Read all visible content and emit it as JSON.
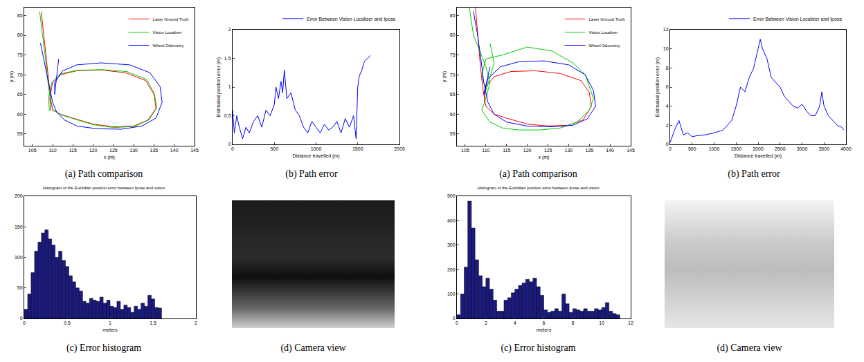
{
  "chart_data": [
    {
      "type": "line",
      "caption": "(a) Path comparison",
      "xlabel": "x (m)",
      "ylabel": "y (m)",
      "xlim": [
        103,
        145
      ],
      "xticks": [
        105,
        110,
        115,
        120,
        125,
        130,
        135,
        140,
        145
      ],
      "ylim": [
        52,
        87
      ],
      "yticks": [
        55,
        60,
        65,
        70,
        75,
        80,
        85
      ],
      "grid": false,
      "legend": "upper right",
      "series": [
        {
          "name": "Laser Ground Truth",
          "color": "#ff0000",
          "x": [
            107.2,
            107.8,
            108.4,
            109,
            109.5,
            110,
            112,
            115,
            120,
            125,
            130,
            133.5,
            135.5,
            135,
            133,
            128,
            122,
            116,
            112,
            110,
            109.3,
            109.5
          ],
          "values": [
            86,
            80,
            74,
            68,
            64,
            61,
            60,
            59,
            57.5,
            56.8,
            57,
            58.5,
            61.5,
            65,
            68.5,
            70.5,
            71.2,
            71,
            70,
            68,
            64,
            61
          ]
        },
        {
          "name": "Vision Localizer",
          "color": "#00cc00",
          "x": [
            106.8,
            107.5,
            108.2,
            108.8,
            109.3,
            110,
            112.2,
            115.3,
            120.2,
            125.1,
            130.2,
            133.8,
            135.7,
            135.1,
            133.2,
            128.3,
            122.1,
            116,
            111.8,
            109.8,
            109,
            109.2
          ],
          "values": [
            86,
            80.5,
            74.5,
            68.5,
            64.5,
            61.2,
            59.8,
            58.8,
            57.3,
            56.6,
            56.9,
            58.6,
            61.6,
            65.2,
            68.8,
            70.8,
            71.3,
            71.1,
            70.2,
            68.1,
            64.2,
            60.8
          ]
        },
        {
          "name": "Wheel Odometry",
          "color": "#0000ff",
          "x": [
            107,
            107.8,
            108.6,
            109.3,
            110,
            111,
            113,
            116,
            121,
            127,
            132,
            135.5,
            137,
            136.5,
            134,
            129,
            122,
            116,
            112.5,
            110.5,
            110.5,
            111.5
          ],
          "values": [
            78,
            74,
            70,
            66,
            63,
            60.5,
            58.5,
            57,
            56.3,
            56.2,
            57,
            59,
            63,
            67,
            70.5,
            72.5,
            73,
            72.5,
            71,
            68,
            65,
            74
          ]
        }
      ]
    },
    {
      "type": "line",
      "caption": "(b) Path error",
      "xlabel": "Distance travelled (m)",
      "ylabel": "Estimated position error (m)",
      "xlim": [
        0,
        2000
      ],
      "xticks": [
        0,
        500,
        1000,
        1500,
        2000
      ],
      "ylim": [
        0,
        2
      ],
      "yticks": [
        0,
        0.5,
        1,
        1.5,
        2
      ],
      "grid": false,
      "legend": "top",
      "series": [
        {
          "name": "Error Between Vision Localizer and Ipose",
          "color": "#0000ff",
          "x": [
            0,
            20,
            50,
            80,
            120,
            160,
            200,
            250,
            300,
            350,
            400,
            450,
            500,
            520,
            550,
            580,
            600,
            620,
            650,
            700,
            750,
            800,
            850,
            900,
            950,
            1000,
            1050,
            1100,
            1150,
            1200,
            1250,
            1300,
            1350,
            1400,
            1450,
            1480,
            1500,
            1520,
            1550,
            1580,
            1620,
            1650
          ],
          "values": [
            0.6,
            0.2,
            0.5,
            0.3,
            0.1,
            0.3,
            0.2,
            0.4,
            0.5,
            0.3,
            0.6,
            0.5,
            0.7,
            1.0,
            0.8,
            1.1,
            0.9,
            1.3,
            0.8,
            0.9,
            0.6,
            0.5,
            0.3,
            0.2,
            0.4,
            0.3,
            0.2,
            0.35,
            0.25,
            0.3,
            0.4,
            0.2,
            0.45,
            0.3,
            0.5,
            0.1,
            1.0,
            1.2,
            1.3,
            1.45,
            1.5,
            1.55
          ]
        }
      ]
    },
    {
      "type": "histogram",
      "caption": "(c) Error histogram",
      "title": "Histogram of the Euclidian position error between Ipose and vision",
      "xlabel": "meters",
      "color": "#1a1a80",
      "xlim": [
        0,
        2
      ],
      "xticks": [
        0,
        0.5,
        1,
        1.5,
        2
      ],
      "ylim": [
        0,
        200
      ],
      "yticks": [
        0,
        50,
        100,
        150,
        200
      ],
      "grid": false,
      "bins": [
        0,
        0.04,
        0.08,
        0.12,
        0.16,
        0.2,
        0.24,
        0.28,
        0.32,
        0.36,
        0.4,
        0.44,
        0.48,
        0.52,
        0.56,
        0.6,
        0.64,
        0.68,
        0.72,
        0.76,
        0.8,
        0.84,
        0.88,
        0.92,
        0.96,
        1,
        1.04,
        1.08,
        1.12,
        1.16,
        1.2,
        1.24,
        1.28,
        1.32,
        1.36,
        1.4,
        1.44,
        1.48,
        1.52,
        1.56,
        1.6
      ],
      "values": [
        15,
        40,
        75,
        110,
        125,
        140,
        145,
        130,
        120,
        100,
        110,
        95,
        85,
        70,
        60,
        50,
        45,
        28,
        25,
        33,
        30,
        28,
        35,
        25,
        30,
        20,
        18,
        28,
        15,
        22,
        18,
        10,
        20,
        15,
        25,
        20,
        38,
        32,
        18,
        17
      ]
    },
    {
      "type": "image",
      "caption": "(d) Camera view",
      "color": "dark"
    },
    {
      "type": "line",
      "caption": "(a) Path comparison",
      "xlabel": "x (m)",
      "ylabel": "y (m)",
      "xlim": [
        103,
        145
      ],
      "xticks": [
        105,
        110,
        115,
        120,
        125,
        130,
        135,
        140,
        145
      ],
      "ylim": [
        52,
        87
      ],
      "yticks": [
        55,
        60,
        65,
        70,
        75,
        80,
        85
      ],
      "grid": false,
      "legend": "upper right",
      "series": [
        {
          "name": "Laser Ground Truth",
          "color": "#ff0000",
          "x": [
            107.5,
            108,
            108.6,
            109.2,
            110,
            112,
            115,
            120,
            125,
            130,
            133.5,
            135.5,
            135,
            133,
            128,
            122,
            116,
            112,
            110,
            109.6
          ],
          "values": [
            87,
            80,
            73,
            67,
            62,
            60,
            59,
            57.5,
            57,
            57.2,
            58.6,
            62,
            65.5,
            68.5,
            70.3,
            71,
            70.8,
            69.5,
            67,
            63
          ]
        },
        {
          "name": "Vision Localizer",
          "color": "#00cc00",
          "x": [
            106,
            107,
            108.5,
            110,
            111,
            110,
            109,
            111,
            114,
            118,
            123,
            128,
            132,
            135,
            136,
            134,
            131,
            126,
            120,
            114,
            110,
            109,
            110,
            112,
            111
          ],
          "values": [
            87,
            80,
            76,
            72,
            68,
            64,
            61,
            58,
            56.5,
            56,
            56,
            56.5,
            58,
            61,
            64,
            70,
            73,
            76,
            77,
            75,
            74,
            70,
            66,
            73,
            78
          ]
        },
        {
          "name": "Wheel Odometry",
          "color": "#0000ff",
          "x": [
            107,
            108,
            108.8,
            109.5,
            110.5,
            112,
            115,
            120,
            126,
            131,
            134.5,
            136.5,
            136,
            134,
            130,
            124,
            118,
            113.5,
            110.5,
            109.5,
            111
          ],
          "values": [
            86,
            80,
            74,
            68,
            63,
            60,
            58,
            57,
            56.8,
            57.2,
            58.8,
            62,
            66,
            70,
            72.5,
            73.5,
            73.3,
            72,
            69,
            65,
            72
          ]
        }
      ]
    },
    {
      "type": "line",
      "caption": "(b) Path error",
      "xlabel": "Distance travelled (m)",
      "ylabel": "Estimated position error (m)",
      "xlim": [
        0,
        4000
      ],
      "xticks": [
        0,
        500,
        1000,
        1500,
        2000,
        2500,
        3000,
        3500,
        4000
      ],
      "ylim": [
        0,
        12
      ],
      "yticks": [
        0,
        2,
        4,
        6,
        8,
        10,
        12
      ],
      "grid": false,
      "legend": "top",
      "series": [
        {
          "name": "Error Between Vision Localizer and Ipose",
          "color": "#0000ff",
          "x": [
            0,
            100,
            200,
            300,
            400,
            500,
            600,
            800,
            1000,
            1200,
            1400,
            1500,
            1600,
            1700,
            1800,
            1900,
            2000,
            2050,
            2100,
            2200,
            2300,
            2400,
            2500,
            2600,
            2700,
            2800,
            2900,
            3000,
            3100,
            3200,
            3300,
            3400,
            3450,
            3500,
            3600,
            3700,
            3800,
            3900,
            3950
          ],
          "values": [
            0.2,
            1.5,
            2.5,
            1.0,
            1.2,
            0.8,
            0.9,
            1.0,
            1.2,
            1.5,
            2.5,
            4,
            6,
            5.5,
            7,
            8,
            10,
            11,
            10,
            9,
            7,
            6.5,
            6,
            5,
            4.5,
            4,
            3.8,
            4.2,
            3.5,
            3,
            3,
            4,
            5.5,
            4,
            3,
            2.5,
            2,
            1.8,
            1.5
          ]
        }
      ]
    },
    {
      "type": "histogram",
      "caption": "(c) Error histogram",
      "title": "Histogram of the Euclidian position error between Ipose and vision",
      "xlabel": "meters",
      "color": "#1a1a80",
      "xlim": [
        0,
        12
      ],
      "xticks": [
        0,
        2,
        4,
        6,
        8,
        10,
        12
      ],
      "ylim": [
        0,
        500
      ],
      "yticks": [
        0,
        100,
        200,
        300,
        400,
        500
      ],
      "grid": false,
      "bins": [
        0,
        0.25,
        0.5,
        0.75,
        1,
        1.25,
        1.5,
        1.75,
        2,
        2.25,
        2.5,
        2.75,
        3,
        3.25,
        3.5,
        3.75,
        4,
        4.25,
        4.5,
        4.75,
        5,
        5.25,
        5.5,
        5.75,
        6,
        6.25,
        6.5,
        6.75,
        7,
        7.25,
        7.5,
        7.75,
        8,
        8.25,
        8.5,
        8.75,
        9,
        9.25,
        9.5,
        9.75,
        10,
        10.25,
        10.5,
        10.75,
        11,
        11.25
      ],
      "values": [
        15,
        100,
        210,
        480,
        370,
        240,
        175,
        130,
        165,
        120,
        75,
        30,
        30,
        75,
        85,
        105,
        120,
        135,
        145,
        160,
        150,
        165,
        130,
        95,
        35,
        25,
        30,
        40,
        30,
        100,
        60,
        25,
        40,
        35,
        30,
        40,
        30,
        30,
        40,
        35,
        45,
        65,
        30,
        20,
        15
      ]
    },
    {
      "type": "image",
      "caption": "(d) Camera view",
      "color": "light"
    }
  ]
}
